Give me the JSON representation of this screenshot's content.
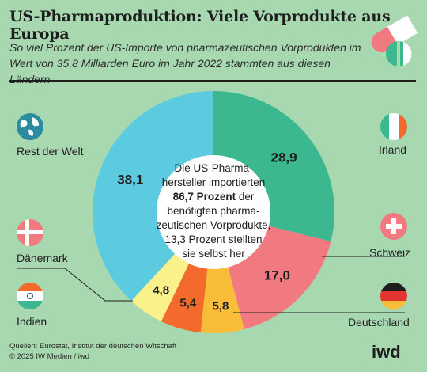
{
  "header": {
    "title": "US-Pharmaproduktion: Viele Vorprodukte aus Europa",
    "subtitle": "So viel Prozent der US-Importe von pharmazeutischen Vorprodukten im Wert von 35,8 Milliarden Euro im Jahr 2022 stammten aus diesen Ländern"
  },
  "center": {
    "line1": "Die US-Pharma-",
    "line2": "hersteller importierten",
    "bold": "86,7 Prozent",
    "line3_rest": " der",
    "line4": "benötigten pharma-",
    "line5": "zeutischen Vorprodukte,",
    "line6": "13,3 Prozent stellten",
    "line7": "sie selbst her"
  },
  "labels": {
    "irland": "Irland",
    "schweiz": "Schweiz",
    "deutschland": "Deutschland",
    "indien": "Indien",
    "daenemark": "Dänemark",
    "rest": "Rest der Welt"
  },
  "footer": {
    "source": "Quellen: Eurostat, Institut der deutschen Witschaft",
    "copyright": "© 2025 IW Medien / iwd",
    "logo": "iwd"
  },
  "colors": {
    "background": "#a8d8b0",
    "irland": "#3bb88f",
    "schweiz": "#f07a7f",
    "deutschland": "#f9bd3a",
    "indien": "#f46a2c",
    "daenemark": "#fbf18a",
    "rest": "#5ccbe0"
  },
  "chart_data": {
    "type": "pie",
    "variant": "donut",
    "categories": [
      "Irland",
      "Schweiz",
      "Deutschland",
      "Indien",
      "Dänemark",
      "Rest der Welt"
    ],
    "values": [
      28.9,
      17.0,
      5.8,
      5.4,
      4.8,
      38.1
    ],
    "value_labels": [
      "28,9",
      "17,0",
      "5,8",
      "5,4",
      "4,8",
      "38,1"
    ],
    "colors": [
      "#3bb88f",
      "#f07a7f",
      "#f9bd3a",
      "#f46a2c",
      "#fbf18a",
      "#5ccbe0"
    ],
    "start": "top",
    "direction": "clockwise"
  }
}
